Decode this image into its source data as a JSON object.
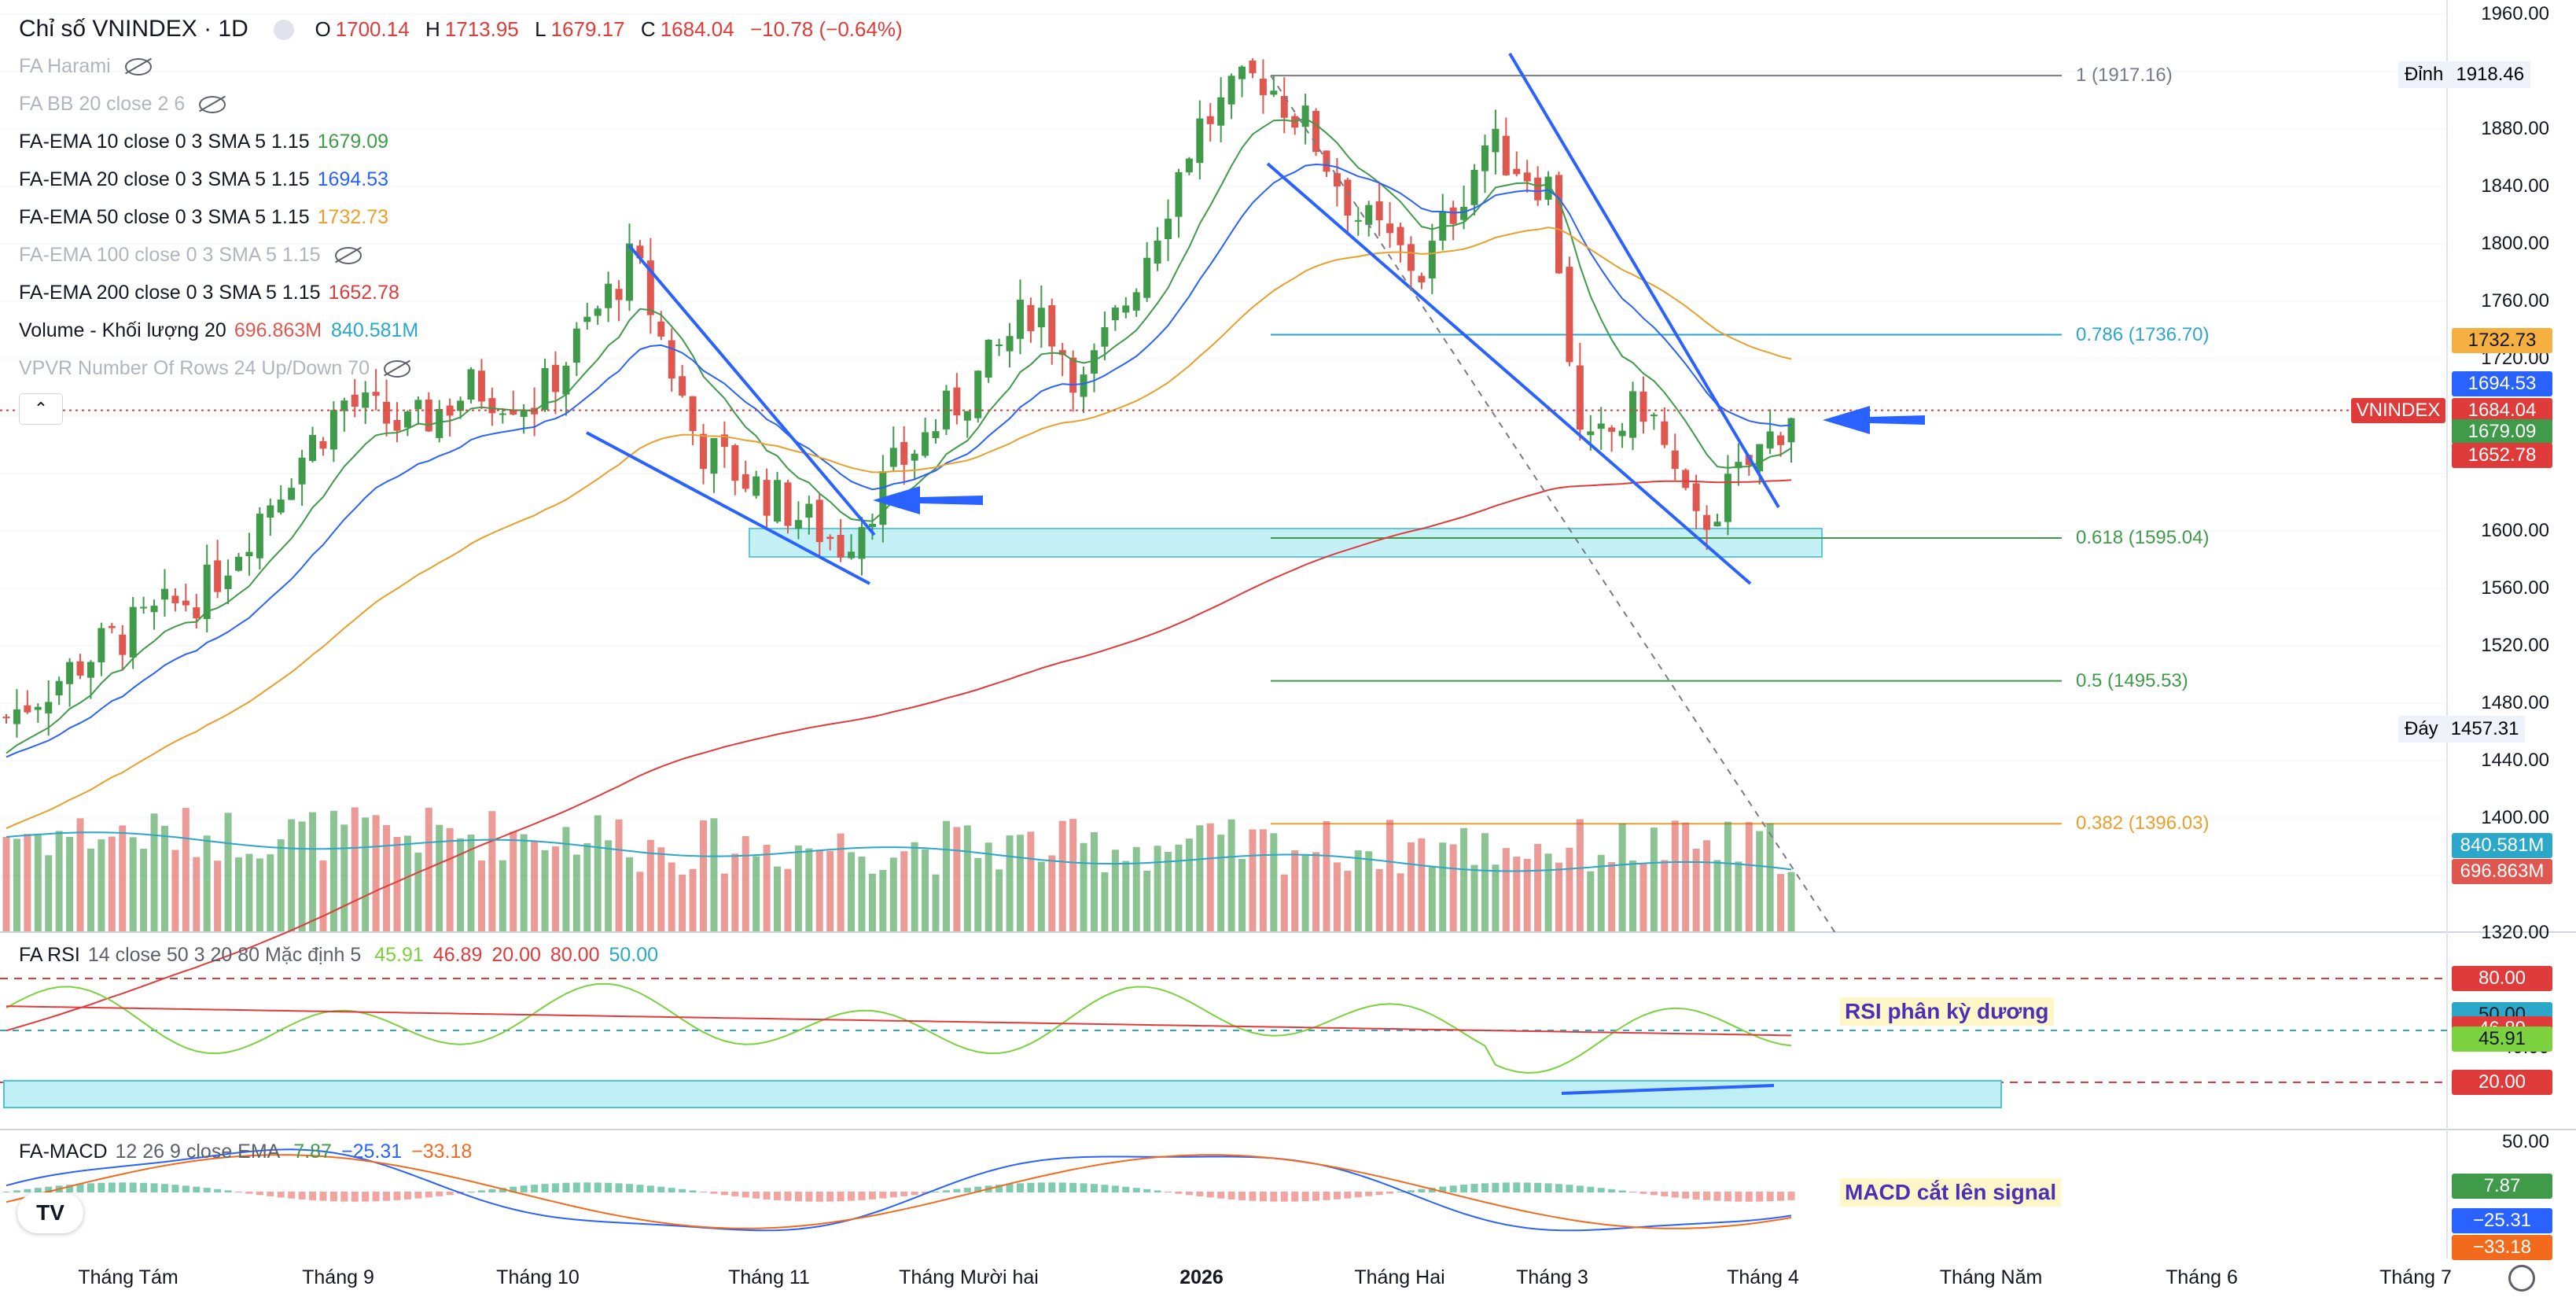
{
  "header": {
    "title": "Chỉ số VNINDEX · 1D",
    "o_label": "O",
    "o": "1700.14",
    "h_label": "H",
    "h": "1713.95",
    "l_label": "L",
    "l": "1679.17",
    "c_label": "C",
    "c": "1684.04",
    "change": "−10.78 (−0.64%)"
  },
  "legend": [
    {
      "name": "FA Harami",
      "hidden": true,
      "values": []
    },
    {
      "name": "FA BB 20 close 2 6",
      "hidden": true,
      "values": []
    },
    {
      "name": "FA-EMA 10 close 0 3 SMA 5 1.15",
      "hidden": false,
      "values": [
        {
          "v": "1679.09",
          "color": "#3f9b4a"
        }
      ]
    },
    {
      "name": "FA-EMA 20 close 0 3 SMA 5 1.15",
      "hidden": false,
      "values": [
        {
          "v": "1694.53",
          "color": "#2962ff"
        }
      ]
    },
    {
      "name": "FA-EMA 50 close 0 3 SMA 5 1.15",
      "hidden": false,
      "values": [
        {
          "v": "1732.73",
          "color": "#e8a02b"
        }
      ]
    },
    {
      "name": "FA-EMA 100 close 0 3 SMA 5 1.15",
      "hidden": true,
      "values": []
    },
    {
      "name": "FA-EMA 200 close 0 3 SMA 5 1.15",
      "hidden": false,
      "values": [
        {
          "v": "1652.78",
          "color": "#e03b3b"
        }
      ]
    },
    {
      "name": "Volume - Khối lượng 20",
      "hidden": false,
      "values": [
        {
          "v": "696.863M",
          "color": "#e0574f"
        },
        {
          "v": "840.581M",
          "color": "#2aa7c9"
        }
      ]
    },
    {
      "name": "VPVR Number Of Rows 24 Up/Down 70",
      "hidden": true,
      "values": []
    }
  ],
  "rsi_legend": {
    "name": "FA RSI",
    "params": "14 close 50 3 20 80 Mặc định 5",
    "values": [
      {
        "v": "45.91",
        "color": "#7bd13e"
      },
      {
        "v": "46.89",
        "color": "#e03b3b"
      },
      {
        "v": "20.00",
        "color": "#e03b3b"
      },
      {
        "v": "80.00",
        "color": "#e03b3b"
      },
      {
        "v": "50.00",
        "color": "#2aa7c9"
      }
    ]
  },
  "macd_legend": {
    "name": "FA-MACD",
    "params": "12 26 9 close EMA",
    "values": [
      {
        "v": "7.87",
        "color": "#3f9b4a"
      },
      {
        "v": "−25.31",
        "color": "#2962ff"
      },
      {
        "v": "−33.18",
        "color": "#f26b1d"
      }
    ]
  },
  "price_axis": [
    "1960.00",
    "1880.00",
    "1840.00",
    "1800.00",
    "1760.00",
    "1720.00",
    "1600.00",
    "1560.00",
    "1520.00",
    "1480.00",
    "1440.00",
    "1400.00",
    "1320.00"
  ],
  "rsi_axis": [
    "40.00"
  ],
  "macd_axis": [
    "50.00"
  ],
  "badges": {
    "ema50": {
      "label": "1732.73",
      "color": "#f5b041",
      "text": "#131722"
    },
    "ema20": {
      "label": "1694.53",
      "color": "#2962ff",
      "text": "#ffffff"
    },
    "price": {
      "label": "1684.04",
      "color": "#e03b3b",
      "text": "#ffffff"
    },
    "symbol": {
      "label": "VNINDEX",
      "color": "#e03b3b"
    },
    "ema10": {
      "label": "1679.09",
      "color": "#3f9b4a",
      "text": "#ffffff"
    },
    "ema200": {
      "label": "1652.78",
      "color": "#e03b3b",
      "text": "#ffffff"
    },
    "vol_ma": {
      "label": "840.581M",
      "color": "#2aa7c9",
      "text": "#ffffff"
    },
    "vol": {
      "label": "696.863M",
      "color": "#e0574f",
      "text": "#ffffff"
    },
    "rsi80": {
      "label": "80.00",
      "color": "#e03b3b",
      "text": "#ffffff"
    },
    "rsi50": {
      "label": "50.00",
      "color": "#2aa7c9",
      "text": "#131722"
    },
    "rsi_ma": {
      "label": "46.89",
      "color": "#e03b3b",
      "text": "#ffffff"
    },
    "rsi": {
      "label": "45.91",
      "color": "#7bd13e",
      "text": "#131722"
    },
    "rsi20": {
      "label": "20.00",
      "color": "#e03b3b",
      "text": "#ffffff"
    },
    "macd": {
      "label": "7.87",
      "color": "#3f9b4a",
      "text": "#ffffff"
    },
    "macd_line": {
      "label": "−25.31",
      "color": "#2962ff",
      "text": "#ffffff"
    },
    "macd_sig": {
      "label": "−33.18",
      "color": "#f26b1d",
      "text": "#ffffff"
    }
  },
  "high_label": {
    "text": "Đỉnh",
    "value": "1918.46"
  },
  "low_label": {
    "text": "Đáy",
    "value": "1457.31"
  },
  "fib_levels": [
    {
      "label": "1 (1917.16)",
      "price": 1917.16,
      "color": "#787b86"
    },
    {
      "label": "0.786 (1736.70)",
      "price": 1736.7,
      "color": "#2aa7c9"
    },
    {
      "label": "0.618 (1595.04)",
      "price": 1595.04,
      "color": "#3f9b4a"
    },
    {
      "label": "0.5 (1495.53)",
      "price": 1495.53,
      "color": "#3f9b4a"
    },
    {
      "label": "0.382 (1396.03)",
      "price": 1396.03,
      "color": "#e8a02b"
    }
  ],
  "annotations": {
    "rsi": "RSI phân kỳ dương",
    "macd": "MACD cắt lên signal"
  },
  "x_axis": [
    "Tháng Tám",
    "Tháng 9",
    "Tháng 10",
    "Tháng 11",
    "Tháng Mười hai",
    "2026",
    "Tháng Hai",
    "Tháng 3",
    "Tháng 4",
    "Tháng Năm",
    "Tháng 6",
    "Tháng 7"
  ],
  "colors": {
    "up": "#3f9b4a",
    "down": "#e0574f",
    "ema10": "#3f9b4a",
    "ema20": "#2962ff",
    "ema50": "#e8a02b",
    "ema200": "#e03b3b",
    "trend": "#2962ff",
    "zone": "#bfeff4"
  },
  "chart_data": {
    "type": "candlestick",
    "symbol": "VNINDEX",
    "interval": "1D",
    "ylim": [
      1300,
      1960
    ],
    "key_points": [
      {
        "time": "Tháng Tám",
        "price": 1500
      },
      {
        "time": "Tháng 10",
        "price": 1790
      },
      {
        "time": "Tháng 11",
        "price": 1590
      },
      {
        "time": "2026",
        "price": 1918.46
      },
      {
        "time": "Tháng Hai",
        "price": 1770
      },
      {
        "time": "Tháng 3",
        "price": 1895
      },
      {
        "time": "Tháng 3",
        "price": 1590
      },
      {
        "time": "Tháng 4",
        "price": 1684.04
      }
    ],
    "last": {
      "open": 1700.14,
      "high": 1713.95,
      "low": 1679.17,
      "close": 1684.04
    }
  }
}
